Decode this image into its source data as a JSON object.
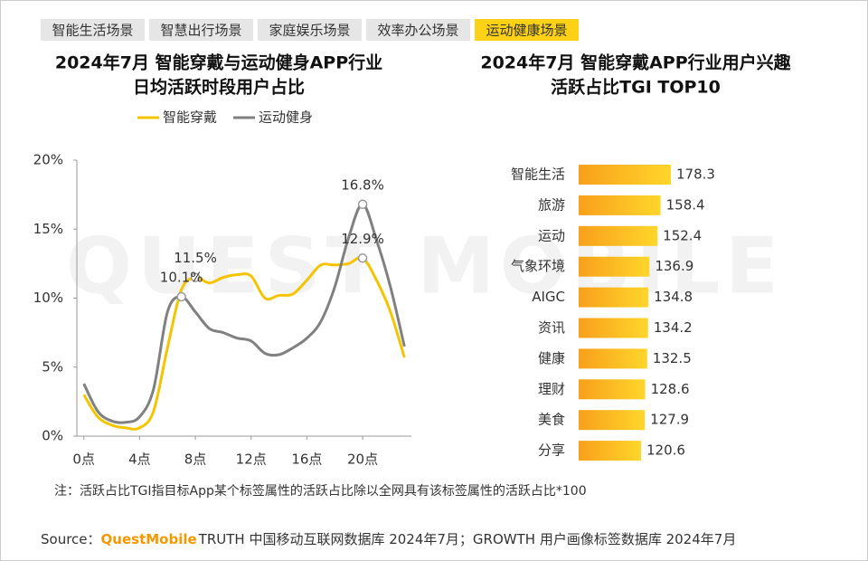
{
  "tabs": {
    "items": [
      "智能生活场景",
      "智慧出行场景",
      "家庭娱乐场景",
      "效率办公场景",
      "运动健康场景"
    ],
    "active": 4
  },
  "watermark": "QUEST MOBILE",
  "chart_data": [
    {
      "type": "line",
      "title": [
        "2024年7月 智能穿戴与运动健身APP行业",
        "日均活跃时段用户占比"
      ],
      "x": [
        0,
        1,
        2,
        3,
        4,
        5,
        6,
        7,
        8,
        9,
        10,
        11,
        12,
        13,
        14,
        15,
        16,
        17,
        18,
        19,
        20,
        21,
        22,
        23
      ],
      "xlim": [
        -0.5,
        23.5
      ],
      "xticks": [
        {
          "value": 0,
          "label": "0点"
        },
        {
          "value": 4,
          "label": "4点"
        },
        {
          "value": 8,
          "label": "8点"
        },
        {
          "value": 12,
          "label": "12点"
        },
        {
          "value": 16,
          "label": "16点"
        },
        {
          "value": 20,
          "label": "20点"
        }
      ],
      "ylim": [
        0,
        20
      ],
      "yticks": [
        {
          "value": 0,
          "label": "0%"
        },
        {
          "value": 5,
          "label": "5%"
        },
        {
          "value": 10,
          "label": "10%"
        },
        {
          "value": 15,
          "label": "15%"
        },
        {
          "value": 20,
          "label": "20%"
        }
      ],
      "legend": "top",
      "series": [
        {
          "name": "智能穿戴",
          "color": "#f5c400",
          "values": [
            3.0,
            1.4,
            0.8,
            0.6,
            0.6,
            1.8,
            6.4,
            10.6,
            11.5,
            11.1,
            11.5,
            11.7,
            11.6,
            10.0,
            10.2,
            10.3,
            11.3,
            12.4,
            12.4,
            12.5,
            12.9,
            11.3,
            9.0,
            5.7
          ],
          "value_labels": [
            null,
            null,
            null,
            null,
            null,
            null,
            null,
            null,
            "11.5%",
            null,
            null,
            null,
            null,
            null,
            null,
            null,
            null,
            null,
            null,
            null,
            "12.9%",
            null,
            null,
            null
          ]
        },
        {
          "name": "运动健身",
          "color": "#808080",
          "values": [
            3.8,
            1.8,
            1.1,
            1.0,
            1.4,
            3.4,
            9.0,
            10.1,
            9.0,
            7.8,
            7.5,
            7.1,
            6.9,
            6.0,
            5.9,
            6.4,
            7.1,
            8.3,
            10.8,
            14.4,
            16.8,
            14.2,
            10.8,
            6.5
          ],
          "value_labels": [
            null,
            null,
            null,
            null,
            null,
            null,
            null,
            "10.1%",
            null,
            null,
            null,
            null,
            null,
            null,
            null,
            null,
            null,
            null,
            null,
            null,
            "16.8%",
            null,
            null,
            null
          ]
        }
      ]
    },
    {
      "type": "hbar",
      "title": [
        "2024年7月 智能穿戴APP行业用户兴趣",
        "活跃占比TGI TOP10"
      ],
      "categories": [
        "智能生活",
        "旅游",
        "运动",
        "气象环境",
        "AIGC",
        "资讯",
        "健康",
        "理财",
        "美食",
        "分享"
      ],
      "values": [
        178.3,
        158.4,
        152.4,
        136.9,
        134.8,
        134.2,
        132.5,
        128.6,
        127.9,
        120.6
      ],
      "gradient": [
        "#f8a01b",
        "#ffd62b"
      ]
    }
  ],
  "note": "注：活跃占比TGI指目标App某个标签属性的活跃占比除以全网具有该标签属性的活跃占比*100",
  "source": {
    "label": "Source：",
    "brand": "QuestMobile",
    "text": "TRUTH 中国移动互联网数据库 2024年7月；GROWTH 用户画像标签数据库 2024年7月"
  }
}
